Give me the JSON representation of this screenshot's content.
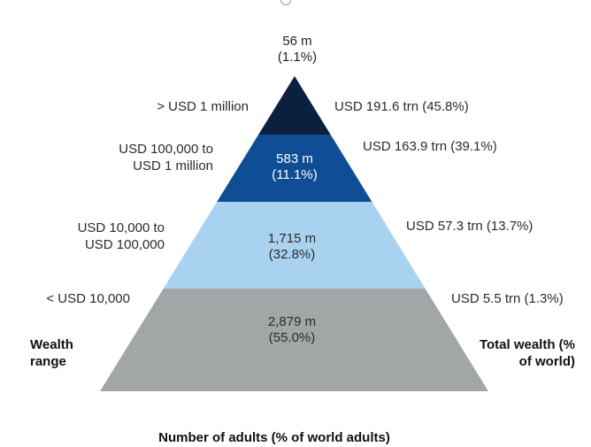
{
  "chart_data": {
    "type": "pyramid",
    "title": "",
    "xlabel": "Number of adults (% of world adults)",
    "left_axis_label": "Wealth range",
    "right_axis_label": "Total wealth (% of world)",
    "tiers": [
      {
        "range_line1": "> USD 1 million",
        "range_line2": "",
        "adults": "56 m",
        "adults_pct": "(1.1%)",
        "wealth": "USD 191.6 trn (45.8%)",
        "color": "#0b1f3f",
        "text_color": "#2b2b2b"
      },
      {
        "range_line1": "USD 100,000 to",
        "range_line2": "USD 1 million",
        "adults": "583 m",
        "adults_pct": "(11.1%)",
        "wealth": "USD 163.9 trn (39.1%)",
        "color": "#0f4d95",
        "text_color": "#ffffff"
      },
      {
        "range_line1": "USD 10,000 to",
        "range_line2": "USD 100,000",
        "adults": "1,715 m",
        "adults_pct": "(32.8%)",
        "wealth": "USD 57.3 trn (13.7%)",
        "color": "#a9d2f0",
        "text_color": "#2b2b2b"
      },
      {
        "range_line1": "< USD 10,000",
        "range_line2": "",
        "adults": "2,879 m",
        "adults_pct": "(55.0%)",
        "wealth": "USD 5.5 trn (1.3%)",
        "color": "#a3a6a7",
        "text_color": "#2b2b2b"
      }
    ]
  }
}
